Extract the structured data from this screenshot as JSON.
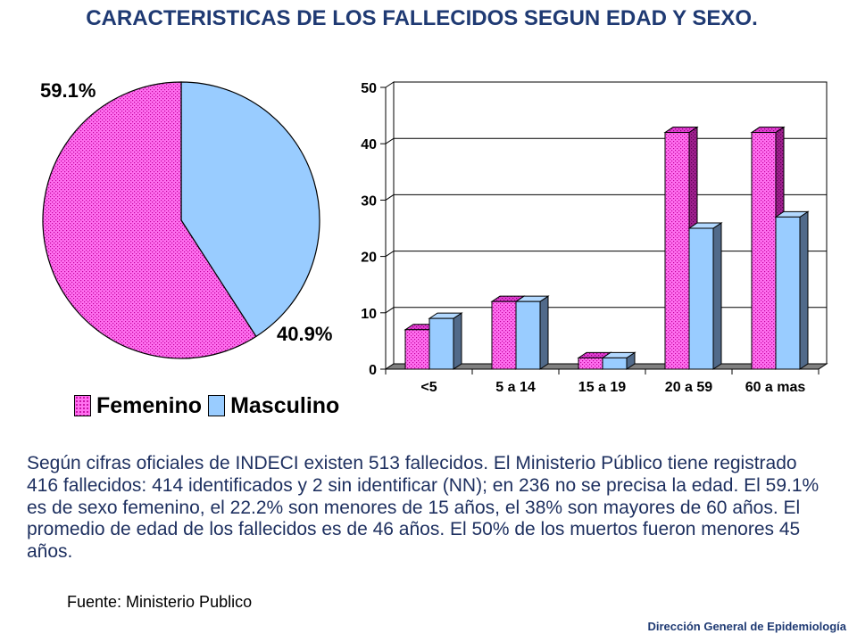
{
  "page": {
    "title": "CARACTERISTICAS DE LOS FALLECIDOS SEGUN EDAD Y SEXO."
  },
  "colors": {
    "title": "#1f3a73",
    "body_text": "#1d2f5f",
    "footer": "#1f3a73",
    "femenino": "#ff70f0",
    "masculino": "#99ccff",
    "floor": "#808080"
  },
  "chart_data": [
    {
      "type": "pie",
      "categories": [
        "Femenino",
        "Masculino"
      ],
      "values": [
        59.1,
        40.9
      ],
      "labels": [
        "59.1%",
        "40.9%"
      ],
      "colors": [
        "#ff70f0",
        "#99ccff"
      ],
      "legend": "bottom"
    },
    {
      "type": "bar",
      "projection": "3d",
      "categories": [
        "<5",
        "5 a 14",
        "15 a 19",
        "20 a 59",
        "60 a mas"
      ],
      "series": [
        {
          "name": "Femenino",
          "values": [
            7,
            12,
            2,
            42,
            42
          ]
        },
        {
          "name": "Masculino",
          "values": [
            9,
            12,
            2,
            25,
            27
          ]
        }
      ],
      "ylim": [
        0,
        50
      ],
      "yticks": [
        0,
        10,
        20,
        30,
        40,
        50
      ],
      "grid": true,
      "colors": [
        "#ff70f0",
        "#99ccff"
      ]
    }
  ],
  "body_text": {
    "lines": [
      "Según cifras oficiales de INDECI existen 513 fallecidos. El Ministerio Público tiene registrado",
      "416 fallecidos: 414 identificados y 2 sin identificar (NN); en 236 no se precisa la edad. El 59.1%",
      "es de sexo femenino, el 22.2% son menores de 15 años, el 38% son mayores de 60 años. El",
      "promedio de edad de los fallecidos es de 46 años. El 50% de los muertos fueron menores 45",
      "años."
    ]
  },
  "source": "Fuente: Ministerio Publico",
  "footer": "Dirección General de Epidemiología"
}
